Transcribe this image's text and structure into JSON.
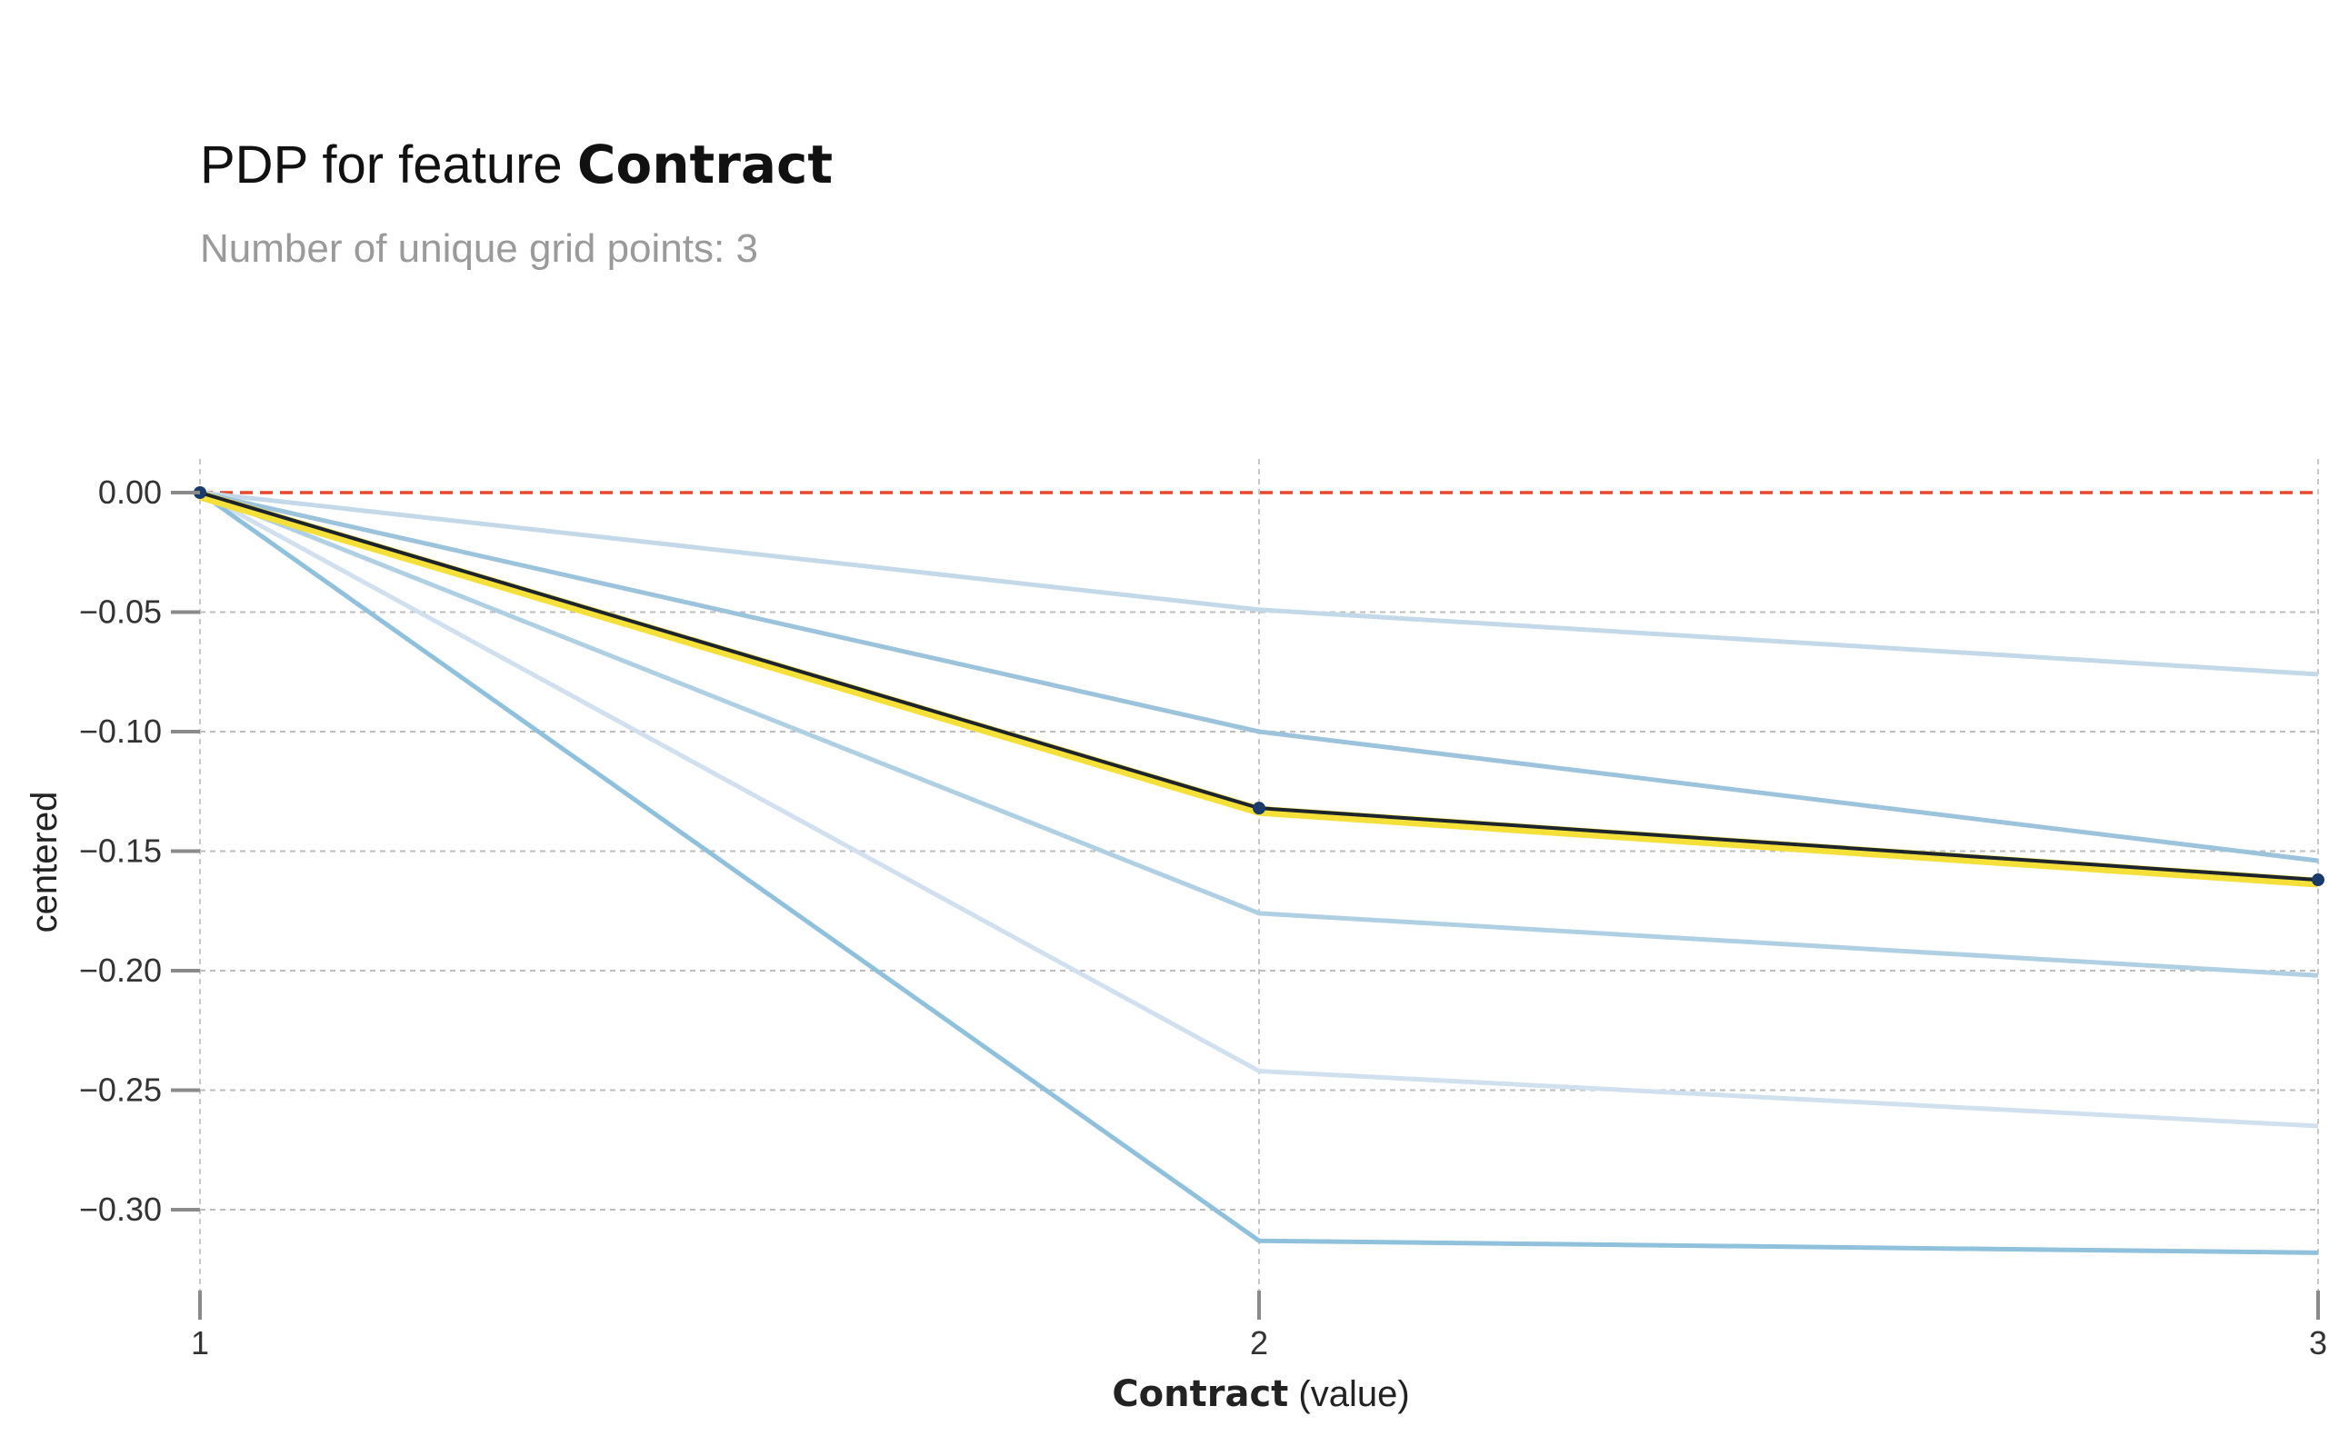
{
  "header": {
    "title_prefix": "PDP for feature ",
    "title_feature": "Contract",
    "subtitle": "Number of unique grid points: 3"
  },
  "chart_data": {
    "type": "line",
    "x": [
      1,
      2,
      3
    ],
    "x_tick_labels": [
      "1",
      "2",
      "3"
    ],
    "xlim": [
      1,
      3
    ],
    "ylim": [
      -0.335,
      0.015
    ],
    "y_ticks": [
      0.0,
      -0.05,
      -0.1,
      -0.15,
      -0.2,
      -0.25,
      -0.3
    ],
    "y_tick_labels": [
      "0.00",
      "−0.05",
      "−0.10",
      "−0.15",
      "−0.20",
      "−0.25",
      "−0.30"
    ],
    "xlabel_bold": "Contract",
    "xlabel_rest": " (value)",
    "ylabel": "centered",
    "grid": true,
    "reference_line": {
      "y": 0.0,
      "color": "#e8492b",
      "style": "dashed"
    },
    "ice_lines": [
      {
        "values": [
          0.0,
          -0.049,
          -0.076
        ],
        "color": "#c3d8e8"
      },
      {
        "values": [
          0.0,
          -0.1,
          -0.154
        ],
        "color": "#9cc3dc"
      },
      {
        "values": [
          0.0,
          -0.176,
          -0.202
        ],
        "color": "#afcfe3"
      },
      {
        "values": [
          0.0,
          -0.242,
          -0.265
        ],
        "color": "#d0e0ef"
      },
      {
        "values": [
          0.0,
          -0.313,
          -0.318
        ],
        "color": "#8fc0dc"
      }
    ],
    "pdp_line": {
      "values": [
        0.0,
        -0.132,
        -0.162
      ],
      "line_color": "#1c2430",
      "band_color": "#f5e03a",
      "marker_color": "#1a3a6b"
    }
  }
}
